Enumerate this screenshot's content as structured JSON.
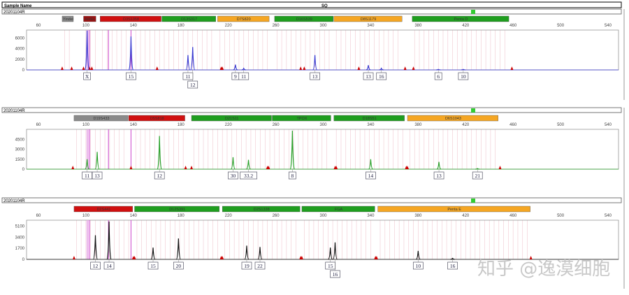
{
  "header": {
    "sample_name_label": "Sample Name",
    "column2_label": "SQ"
  },
  "watermark": "知乎 @逸漠细胞",
  "colors": {
    "blue": "#3a3ad0",
    "green": "#2aa02a",
    "black": "#111111",
    "marker_green": "#1f9e1f",
    "marker_orange": "#f5a623",
    "marker_red": "#d01010",
    "marker_darkred": "#a01010",
    "marker_gray": "#8a8a8a",
    "bin_line": "#f0c8d0",
    "size_std": "#cc44cc",
    "off_ladder": "#cc0000"
  },
  "chart_data": [
    {
      "type": "line",
      "sample": "20201104R",
      "dye": "blue",
      "xlim": [
        50,
        550
      ],
      "x_ticks": [
        60,
        100,
        140,
        180,
        220,
        260,
        300,
        340,
        380,
        420,
        460,
        500,
        540
      ],
      "ylim": [
        0,
        7500
      ],
      "y_ticks": [
        0,
        2000,
        4000,
        6000
      ],
      "markers": [
        {
          "name": "Yindel",
          "range": [
            80,
            90
          ],
          "color": "gray"
        },
        {
          "name": "AMEL",
          "range": [
            98,
            109
          ],
          "color": "darkred"
        },
        {
          "name": "D3S1358",
          "range": [
            112,
            164
          ],
          "color": "red"
        },
        {
          "name": "D13S317",
          "range": [
            164,
            210
          ],
          "color": "green"
        },
        {
          "name": "D7S820",
          "range": [
            211,
            255
          ],
          "color": "orange"
        },
        {
          "name": "D16S539",
          "range": [
            259,
            309
          ],
          "color": "green"
        },
        {
          "name": "D8S1179",
          "range": [
            309,
            367
          ],
          "color": "orange"
        },
        {
          "name": "Penta D",
          "range": [
            375,
            457
          ],
          "color": "green"
        }
      ],
      "peaks": [
        {
          "allele": "X",
          "size": 101,
          "height": 7400
        },
        {
          "allele": "15",
          "size": 138,
          "height": 6300
        },
        {
          "allele": "11",
          "size": 186,
          "height": 2800
        },
        {
          "allele": "12",
          "size": 190,
          "height": 4300,
          "row": 2
        },
        {
          "allele": "9",
          "size": 226,
          "height": 1000
        },
        {
          "allele": "11",
          "size": 233,
          "height": 300
        },
        {
          "allele": "13",
          "size": 293,
          "height": 2800
        },
        {
          "allele": "13",
          "size": 338,
          "height": 900
        },
        {
          "allele": "16",
          "size": 349,
          "height": 300
        },
        {
          "allele": "6",
          "size": 397,
          "height": 100
        },
        {
          "allele": "10",
          "size": 418,
          "height": 100
        }
      ],
      "off_ladder": [
        80,
        88,
        98,
        103,
        105,
        160,
        214,
        215,
        281,
        284,
        330,
        369,
        376,
        459
      ]
    },
    {
      "type": "line",
      "sample": "20201104R",
      "dye": "green",
      "xlim": [
        50,
        550
      ],
      "x_ticks": [
        60,
        100,
        140,
        180,
        220,
        260,
        300,
        340,
        380,
        420,
        460,
        500,
        540
      ],
      "ylim": [
        0,
        6000
      ],
      "y_ticks": [
        0,
        1500,
        3000,
        4500
      ],
      "markers": [
        {
          "name": "D19S433",
          "range": [
            90,
            136
          ],
          "color": "gray"
        },
        {
          "name": "D5S818",
          "range": [
            136,
            184
          ],
          "color": "red"
        },
        {
          "name": "D21S11",
          "range": [
            189,
            257
          ],
          "color": "green"
        },
        {
          "name": "TPOX",
          "range": [
            257,
            307
          ],
          "color": "green"
        },
        {
          "name": "D18S51",
          "range": [
            309,
            369
          ],
          "color": "green"
        },
        {
          "name": "D6S1043",
          "range": [
            371,
            448
          ],
          "color": "orange"
        }
      ],
      "peaks": [
        {
          "allele": "11",
          "size": 101,
          "height": 1500
        },
        {
          "allele": "13",
          "size": 109.5,
          "height": 2600
        },
        {
          "allele": "12",
          "size": 162,
          "height": 5000
        },
        {
          "allele": "30",
          "size": 224,
          "height": 1800
        },
        {
          "allele": "33.2",
          "size": 237,
          "height": 1400
        },
        {
          "allele": "8",
          "size": 274,
          "height": 5800
        },
        {
          "allele": "14",
          "size": 340,
          "height": 1500
        },
        {
          "allele": "13",
          "size": 397.5,
          "height": 1100
        },
        {
          "allele": "21",
          "size": 430,
          "height": 100
        }
      ],
      "off_ladder": [
        89,
        138,
        184,
        189,
        253,
        254,
        310,
        311,
        370,
        371,
        449
      ]
    },
    {
      "type": "line",
      "sample": "20201104R",
      "dye": "black",
      "xlim": [
        50,
        550
      ],
      "x_ticks": [
        60,
        100,
        140,
        180,
        220,
        260,
        300,
        340,
        380,
        420,
        460,
        500,
        540
      ],
      "ylim": [
        0,
        6000
      ],
      "y_ticks": [
        0,
        1700,
        3400,
        5100
      ],
      "markers": [
        {
          "name": "D2S441",
          "range": [
            90,
            140
          ],
          "color": "red"
        },
        {
          "name": "D12S391",
          "range": [
            141,
            213
          ],
          "color": "green"
        },
        {
          "name": "D2S1338",
          "range": [
            215,
            281
          ],
          "color": "green"
        },
        {
          "name": "FGA",
          "range": [
            282,
            344
          ],
          "color": "green"
        },
        {
          "name": "Penta E",
          "range": [
            346,
            475
          ],
          "color": "orange"
        }
      ],
      "peaks": [
        {
          "allele": "12",
          "size": 108,
          "height": 3700
        },
        {
          "allele": "14",
          "size": 119.5,
          "height": 5800
        },
        {
          "allele": "15",
          "size": 156.6,
          "height": 1800
        },
        {
          "allele": "20",
          "size": 178,
          "height": 3200
        },
        {
          "allele": "19",
          "size": 235.5,
          "height": 2100
        },
        {
          "allele": "22",
          "size": 246.7,
          "height": 1900
        },
        {
          "allele": "15",
          "size": 306,
          "height": 1800
        },
        {
          "allele": "16",
          "size": 310,
          "height": 2600,
          "row": 2
        },
        {
          "allele": "10",
          "size": 380,
          "height": 1300
        },
        {
          "allele": "16",
          "size": 409,
          "height": 150
        }
      ],
      "off_ladder": [
        90,
        140,
        141,
        214,
        215,
        281,
        282,
        344,
        345,
        475
      ]
    }
  ]
}
